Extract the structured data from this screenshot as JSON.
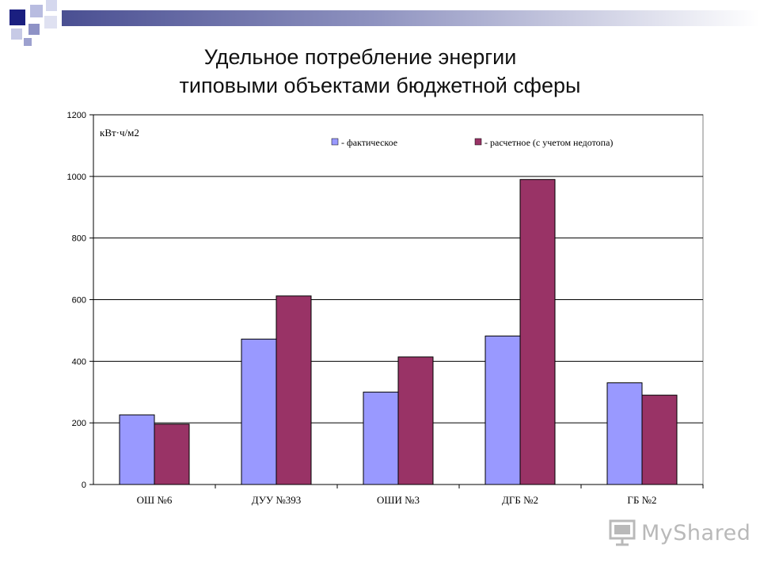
{
  "slide": {
    "title_line1": "Удельное потребление энергии",
    "title_line2": "типовыми объектами бюджетной сферы",
    "logo_text": "MyShared"
  },
  "colors": {
    "actual": "#9999ff",
    "calculated": "#993366",
    "accent": "#202a80"
  },
  "chart_data": {
    "type": "bar",
    "title": "",
    "xlabel": "",
    "ylabel": "кВт·ч/м2",
    "ylim": [
      0,
      1200
    ],
    "yticks": [
      0,
      200,
      400,
      600,
      800,
      1000,
      1200
    ],
    "grid": true,
    "legend_position": "top-right",
    "categories": [
      "ОШ №6",
      "ДУУ №393",
      "ОШИ №3",
      "ДГБ №2",
      "ГБ №2"
    ],
    "series": [
      {
        "name": "фактическое",
        "values": [
          226,
          472,
          300,
          482,
          330
        ]
      },
      {
        "name": "расчетное (с учетом недотопа)",
        "values": [
          196,
          612,
          414,
          990,
          290
        ]
      }
    ]
  }
}
